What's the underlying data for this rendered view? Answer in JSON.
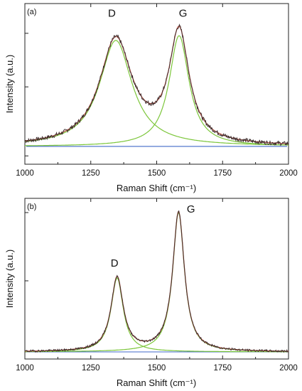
{
  "chart_data": [
    {
      "type": "line",
      "panel_label": "(a)",
      "xlabel": "Raman Shift (cm⁻¹)",
      "ylabel": "Intensity (a.u.)",
      "xlim": [
        1000,
        2000
      ],
      "ylim": [
        -0.15,
        1.2
      ],
      "x_ticks": [
        "1000",
        "1250",
        "1500",
        "1750",
        "2000"
      ],
      "peak_labels": [
        {
          "text": "D",
          "x": 1330,
          "y": 1.09
        },
        {
          "text": "G",
          "x": 1600,
          "y": 1.09
        }
      ],
      "peaks": [
        {
          "name": "D",
          "center": 1345,
          "amplitude": 0.89,
          "hwhm": 75
        },
        {
          "name": "G",
          "center": 1585,
          "amplitude": 0.93,
          "hwhm": 46
        }
      ],
      "baseline": 0.0,
      "noise_amplitude": 0.018,
      "colors": {
        "raw": "#3a2a2a",
        "fit": "#b5584b",
        "component": "#7cc63a",
        "baseline": "#4169c8"
      }
    },
    {
      "type": "line",
      "panel_label": "(b)",
      "xlabel": "Raman Shift (cm⁻¹)",
      "ylabel": "Intensity (a.u.)",
      "xlim": [
        1000,
        2000
      ],
      "ylim": [
        -0.05,
        1.08
      ],
      "x_ticks": [
        "1000",
        "1250",
        "1500",
        "1750",
        "2000"
      ],
      "peak_labels": [
        {
          "text": "D",
          "x": 1340,
          "y": 0.6
        },
        {
          "text": "G",
          "x": 1630,
          "y": 0.98
        }
      ],
      "peaks": [
        {
          "name": "D",
          "center": 1350,
          "amplitude": 0.52,
          "hwhm": 28
        },
        {
          "name": "G",
          "center": 1583,
          "amplitude": 0.98,
          "hwhm": 27
        }
      ],
      "baseline": 0.0,
      "noise_amplitude": 0.008,
      "colors": {
        "raw": "#3a2a2a",
        "fit": "#b5584b",
        "component": "#7cc63a",
        "baseline": "#4169c8"
      }
    }
  ]
}
